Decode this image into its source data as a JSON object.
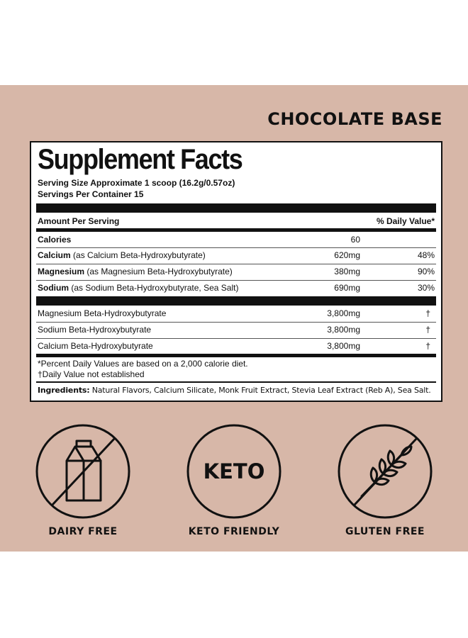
{
  "flavor": "CHOCOLATE BASE",
  "facts": {
    "title": "Supplement Facts",
    "serving_size": "Serving Size Approximate 1 scoop (16.2g/0.57oz)",
    "servings_per_container": "Servings Per Container 15",
    "amount_header": "Amount Per Serving",
    "dv_header": "% Daily Value*",
    "calories": {
      "label": "Calories",
      "amount": "60"
    },
    "nutrients": [
      {
        "name": "Calcium",
        "detail": " (as Calcium Beta-Hydroxybutyrate)",
        "amount": "620mg",
        "dv": "48%"
      },
      {
        "name": "Magnesium",
        "detail": " (as Magnesium Beta-Hydroxybutyrate)",
        "amount": "380mg",
        "dv": "90%"
      },
      {
        "name": "Sodium",
        "detail": " (as Sodium Beta-Hydroxybutyrate, Sea Salt)",
        "amount": "690mg",
        "dv": "30%"
      }
    ],
    "other": [
      {
        "name": "Magnesium Beta-Hydroxybutyrate",
        "amount": "3,800mg",
        "dv": "†"
      },
      {
        "name": "Sodium Beta-Hydroxybutyrate",
        "amount": "3,800mg",
        "dv": "†"
      },
      {
        "name": "Calcium Beta-Hydroxybutyrate",
        "amount": "3,800mg",
        "dv": "†"
      }
    ],
    "footnote_1": "*Percent Daily Values are based on a 2,000 calorie diet.",
    "footnote_2": "†Daily Value not established",
    "ingredients_label": "Ingredients:",
    "ingredients_text": " Natural Flavors, Calcium Silicate, Monk Fruit Extract, Stevia Leaf Extract (Reb A), Sea Salt."
  },
  "badges": [
    {
      "icon": "milk-carton-icon",
      "label": "DAIRY FREE"
    },
    {
      "icon": "keto-icon",
      "icon_text": "KETO",
      "label": "KETO FRIENDLY"
    },
    {
      "icon": "wheat-icon",
      "label": "GLUTEN FREE"
    }
  ],
  "colors": {
    "band": "#d7b7a8",
    "ink": "#111111",
    "panel": "#ffffff"
  }
}
